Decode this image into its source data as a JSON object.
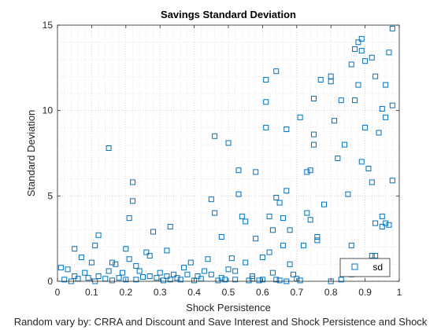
{
  "chart_data": {
    "type": "scatter",
    "title": "Savings Standard Deviation",
    "xlabel": "Shock Persistence",
    "ylabel": "Standard Deviation",
    "caption": "Random vary by: CRRA and Discount and Save Interest and Shock Persistence and Shock",
    "xlim": [
      0,
      1
    ],
    "ylim": [
      0,
      15
    ],
    "xticks": [
      "0",
      "0.1",
      "0.2",
      "0.3",
      "0.4",
      "0.5",
      "0.6",
      "0.7",
      "0.8",
      "0.9",
      "1"
    ],
    "yticks": [
      "0",
      "5",
      "10",
      "15"
    ],
    "grid": true,
    "minor_grid": true,
    "legend_position": "bottom-right",
    "marker": "square",
    "marker_color": "#0072bd",
    "series": [
      {
        "name": "sd",
        "points": [
          [
            0.01,
            0.8
          ],
          [
            0.02,
            0.1
          ],
          [
            0.03,
            0.7
          ],
          [
            0.04,
            0.0
          ],
          [
            0.05,
            0.3
          ],
          [
            0.05,
            1.9
          ],
          [
            0.06,
            0.15
          ],
          [
            0.07,
            1.4
          ],
          [
            0.08,
            0.5
          ],
          [
            0.09,
            0.2
          ],
          [
            0.1,
            1.1
          ],
          [
            0.11,
            0.0
          ],
          [
            0.11,
            2.1
          ],
          [
            0.12,
            2.7
          ],
          [
            0.12,
            0.3
          ],
          [
            0.14,
            0.15
          ],
          [
            0.15,
            0.6
          ],
          [
            0.15,
            7.8
          ],
          [
            0.16,
            1.1
          ],
          [
            0.16,
            0.05
          ],
          [
            0.17,
            1.0
          ],
          [
            0.18,
            0.2
          ],
          [
            0.19,
            0.5
          ],
          [
            0.2,
            0.1
          ],
          [
            0.2,
            1.9
          ],
          [
            0.21,
            1.3
          ],
          [
            0.21,
            3.7
          ],
          [
            0.22,
            4.7
          ],
          [
            0.22,
            5.8
          ],
          [
            0.23,
            0.9
          ],
          [
            0.23,
            0.1
          ],
          [
            0.24,
            0.6
          ],
          [
            0.25,
            0.25
          ],
          [
            0.26,
            1.7
          ],
          [
            0.27,
            1.5
          ],
          [
            0.27,
            0.3
          ],
          [
            0.28,
            2.9
          ],
          [
            0.29,
            0.2
          ],
          [
            0.3,
            0.5
          ],
          [
            0.31,
            0.05
          ],
          [
            0.32,
            1.8
          ],
          [
            0.32,
            0.3
          ],
          [
            0.33,
            3.2
          ],
          [
            0.33,
            0.1
          ],
          [
            0.34,
            0.4
          ],
          [
            0.35,
            0.2
          ],
          [
            0.36,
            0.1
          ],
          [
            0.37,
            0.8
          ],
          [
            0.38,
            0.4
          ],
          [
            0.39,
            1.1
          ],
          [
            0.4,
            0.05
          ],
          [
            0.41,
            0.3
          ],
          [
            0.42,
            0.15
          ],
          [
            0.43,
            0.6
          ],
          [
            0.44,
            1.3
          ],
          [
            0.45,
            0.4
          ],
          [
            0.45,
            4.8
          ],
          [
            0.46,
            4.0
          ],
          [
            0.46,
            8.5
          ],
          [
            0.47,
            0.05
          ],
          [
            0.48,
            2.6
          ],
          [
            0.48,
            0.2
          ],
          [
            0.49,
            0.1
          ],
          [
            0.5,
            8.1
          ],
          [
            0.5,
            0.7
          ],
          [
            0.51,
            1.35
          ],
          [
            0.52,
            0.6
          ],
          [
            0.52,
            0.1
          ],
          [
            0.53,
            5.1
          ],
          [
            0.53,
            6.5
          ],
          [
            0.54,
            3.8
          ],
          [
            0.55,
            3.5
          ],
          [
            0.55,
            1.1
          ],
          [
            0.56,
            0.05
          ],
          [
            0.57,
            0.3
          ],
          [
            0.57,
            0.15
          ],
          [
            0.58,
            6.4
          ],
          [
            0.58,
            2.5
          ],
          [
            0.59,
            0.05
          ],
          [
            0.6,
            0.1
          ],
          [
            0.6,
            1.4
          ],
          [
            0.61,
            10.5
          ],
          [
            0.61,
            9.0
          ],
          [
            0.61,
            11.8
          ],
          [
            0.62,
            1.7
          ],
          [
            0.62,
            3.8
          ],
          [
            0.63,
            3.0
          ],
          [
            0.63,
            0.5
          ],
          [
            0.64,
            4.9
          ],
          [
            0.64,
            12.3
          ],
          [
            0.64,
            0.1
          ],
          [
            0.65,
            4.6
          ],
          [
            0.65,
            0.05
          ],
          [
            0.66,
            2.1
          ],
          [
            0.66,
            3.7
          ],
          [
            0.67,
            5.3
          ],
          [
            0.67,
            0.0
          ],
          [
            0.67,
            8.9
          ],
          [
            0.68,
            1.0
          ],
          [
            0.68,
            3.0
          ],
          [
            0.69,
            0.4
          ],
          [
            0.7,
            0.15
          ],
          [
            0.71,
            0.05
          ],
          [
            0.71,
            9.6
          ],
          [
            0.72,
            2.1
          ],
          [
            0.73,
            4.0
          ],
          [
            0.73,
            6.4
          ],
          [
            0.74,
            6.5
          ],
          [
            0.74,
            3.6
          ],
          [
            0.75,
            8.6
          ],
          [
            0.75,
            8.0
          ],
          [
            0.75,
            10.7
          ],
          [
            0.76,
            2.6
          ],
          [
            0.76,
            2.4
          ],
          [
            0.77,
            11.8
          ],
          [
            0.78,
            4.5
          ],
          [
            0.8,
            0.0
          ],
          [
            0.8,
            12.0
          ],
          [
            0.8,
            11.7
          ],
          [
            0.81,
            9.4
          ],
          [
            0.82,
            7.2
          ],
          [
            0.83,
            10.6
          ],
          [
            0.83,
            0.1
          ],
          [
            0.84,
            8.0
          ],
          [
            0.85,
            5.1
          ],
          [
            0.86,
            12.7
          ],
          [
            0.86,
            2.1
          ],
          [
            0.86,
            0.4
          ],
          [
            0.87,
            13.6
          ],
          [
            0.87,
            10.6
          ],
          [
            0.88,
            14.0
          ],
          [
            0.88,
            11.5
          ],
          [
            0.89,
            13.5
          ],
          [
            0.89,
            14.2
          ],
          [
            0.89,
            7.0
          ],
          [
            0.9,
            9.0
          ],
          [
            0.9,
            12.9
          ],
          [
            0.91,
            6.6
          ],
          [
            0.92,
            5.8
          ],
          [
            0.92,
            13.1
          ],
          [
            0.92,
            1.5
          ],
          [
            0.93,
            12.0
          ],
          [
            0.93,
            3.4
          ],
          [
            0.93,
            1.5
          ],
          [
            0.94,
            8.7
          ],
          [
            0.95,
            10.1
          ],
          [
            0.95,
            3.8
          ],
          [
            0.95,
            3.2
          ],
          [
            0.96,
            9.6
          ],
          [
            0.96,
            11.5
          ],
          [
            0.96,
            3.4
          ],
          [
            0.97,
            13.4
          ],
          [
            0.97,
            3.3
          ],
          [
            0.98,
            14.8
          ],
          [
            0.98,
            10.3
          ],
          [
            0.98,
            5.9
          ]
        ]
      }
    ]
  }
}
